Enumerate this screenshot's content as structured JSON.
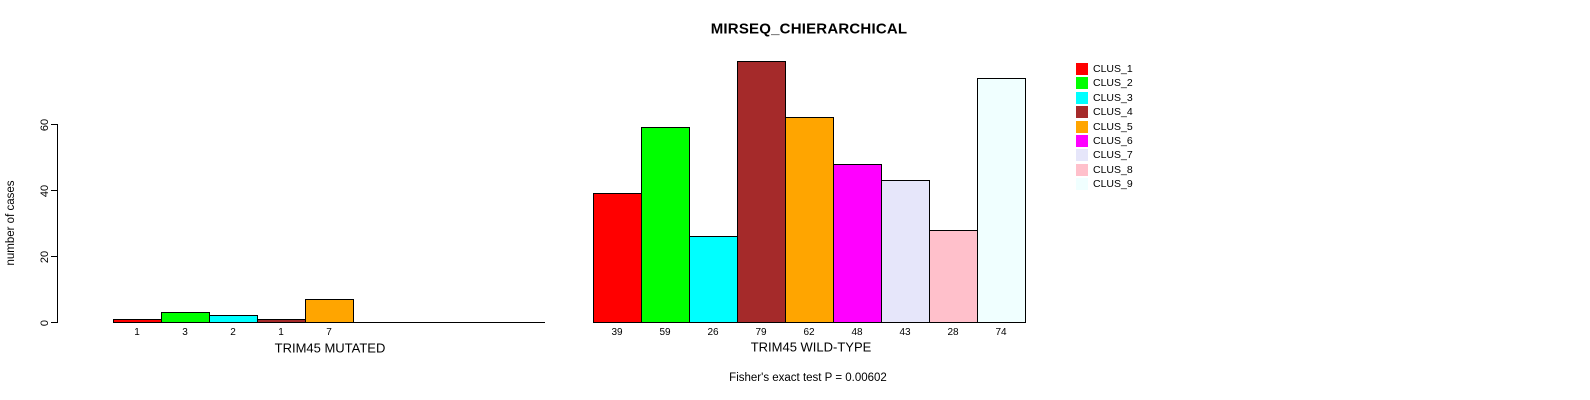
{
  "chart_data": {
    "type": "bar",
    "title": "MIRSEQ_CHIERARCHICAL",
    "ylabel": "number of cases",
    "subtitle": "Fisher's exact test P = 0.00602",
    "yticks": [
      0,
      20,
      40,
      60
    ],
    "ylim": [
      0,
      79
    ],
    "grid": false,
    "legend_position": "right-top",
    "bar_border_color": "#000000",
    "categories": [
      "CLUS_1",
      "CLUS_2",
      "CLUS_3",
      "CLUS_4",
      "CLUS_5",
      "CLUS_6",
      "CLUS_7",
      "CLUS_8",
      "CLUS_9"
    ],
    "colors": [
      "#FF0000",
      "#00FF00",
      "#00FFFF",
      "#A52A2A",
      "#FFA500",
      "#FF00FF",
      "#E6E6FA",
      "#FFC0CB",
      "#F0FFFF"
    ],
    "groups": [
      {
        "label": "TRIM45 MUTATED",
        "values": [
          1,
          3,
          2,
          1,
          7,
          0,
          0,
          0,
          0
        ]
      },
      {
        "label": "TRIM45 WILD-TYPE",
        "values": [
          39,
          59,
          26,
          79,
          62,
          48,
          43,
          28,
          74
        ]
      }
    ]
  }
}
